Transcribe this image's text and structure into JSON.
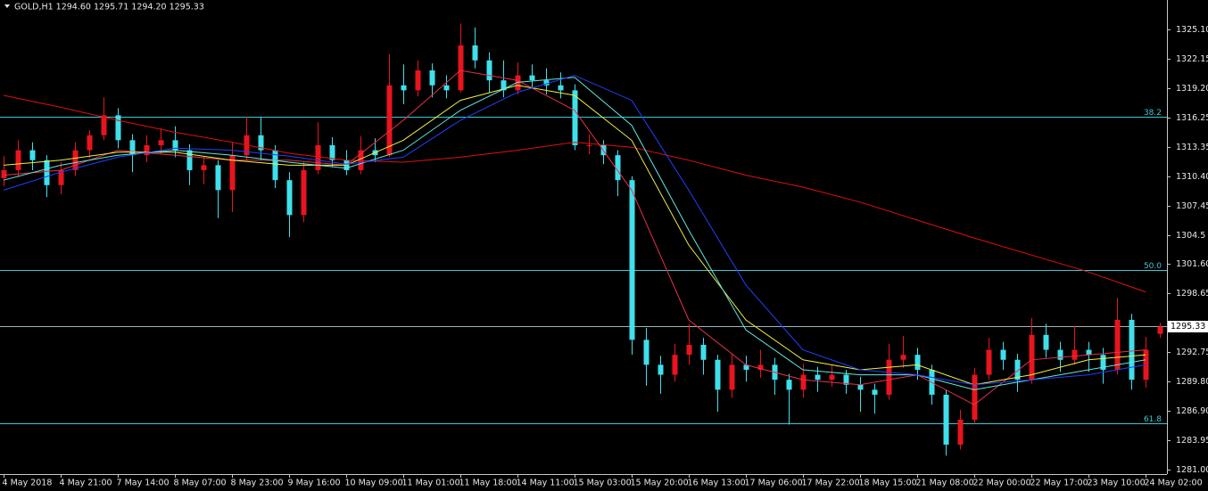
{
  "chart_data": {
    "type": "candlestick",
    "title": "GOLD,H1  1294.60 1295.71 1294.20 1295.33",
    "up_color": "#e8141e",
    "down_color": "#3ee0ec",
    "level_color": "#3fc6d4",
    "ylim": [
      1280.55,
      1328.05
    ],
    "yticks": [
      {
        "value": 1325.1,
        "label": "1325.10"
      },
      1322.15,
      {
        "value": 1319.2,
        "label": "1319.20"
      },
      1316.25,
      1313.35,
      {
        "value": 1310.4,
        "label": "1310.40"
      },
      1307.45,
      1304.5,
      {
        "value": 1301.6,
        "label": "1301.60"
      },
      1298.65,
      1292.75,
      {
        "value": 1289.8,
        "label": "1289.80"
      },
      {
        "value": 1286.9,
        "label": "1286.90"
      },
      1283.95,
      {
        "value": 1281.0,
        "label": "1281.00"
      }
    ],
    "xticks": [
      {
        "value": 0,
        "label": "4 May 2018"
      },
      {
        "value": 4,
        "label": "4 May 21:00"
      },
      {
        "value": 8,
        "label": "7 May 14:00"
      },
      {
        "value": 12,
        "label": "8 May 07:00"
      },
      {
        "value": 16,
        "label": "8 May 23:00"
      },
      {
        "value": 20,
        "label": "9 May 16:00"
      },
      {
        "value": 24,
        "label": "10 May 09:00"
      },
      {
        "value": 28,
        "label": "11 May 01:00"
      },
      {
        "value": 32,
        "label": "11 May 18:00"
      },
      {
        "value": 36,
        "label": "14 May 11:00"
      },
      {
        "value": 40,
        "label": "15 May 03:00"
      },
      {
        "value": 44,
        "label": "15 May 20:00"
      },
      {
        "value": 48,
        "label": "16 May 13:00"
      },
      {
        "value": 52,
        "label": "17 May 06:00"
      },
      {
        "value": 56,
        "label": "17 May 22:00"
      },
      {
        "value": 60,
        "label": "18 May 15:00"
      },
      {
        "value": 64,
        "label": "21 May 08:00"
      },
      {
        "value": 68,
        "label": "22 May 00:00"
      },
      {
        "value": 72,
        "label": "22 May 17:00"
      },
      {
        "value": 76,
        "label": "23 May 10:00"
      },
      {
        "value": 80,
        "label": "24 May 02:00"
      }
    ],
    "current_price": {
      "value": 1295.33,
      "label": "1295.33",
      "color": "#9fb4b8"
    },
    "levels": [
      {
        "label": "38.2",
        "value": 1316.34
      },
      {
        "label": "50.0",
        "value": 1300.97
      },
      {
        "label": "61.8",
        "value": 1285.6
      }
    ],
    "candles": [
      [
        1310.2,
        1312.4,
        1309.4,
        1311
      ],
      [
        1311,
        1314,
        1310.3,
        1313
      ],
      [
        1313,
        1313.8,
        1311,
        1312
      ],
      [
        1312,
        1312.5,
        1308.3,
        1309.5
      ],
      [
        1309.5,
        1311.8,
        1308.6,
        1311
      ],
      [
        1311,
        1313.8,
        1310.4,
        1313
      ],
      [
        1313,
        1315,
        1312.2,
        1314.5
      ],
      [
        1314.5,
        1318.3,
        1314,
        1316.5
      ],
      [
        1316.5,
        1317.2,
        1313.2,
        1314
      ],
      [
        1314,
        1314.6,
        1310.8,
        1312.5
      ],
      [
        1312.5,
        1314.5,
        1311.8,
        1313.5
      ],
      [
        1313.5,
        1315.2,
        1312.6,
        1314
      ],
      [
        1314,
        1315.4,
        1312.3,
        1313
      ],
      [
        1313,
        1313.6,
        1309.5,
        1311
      ],
      [
        1311,
        1312.4,
        1309.6,
        1311.5
      ],
      [
        1311.5,
        1312,
        1306.2,
        1309
      ],
      [
        1309,
        1313.8,
        1306.8,
        1312.5
      ],
      [
        1312.5,
        1316.4,
        1312,
        1314.5
      ],
      [
        1314.5,
        1316.3,
        1312,
        1313
      ],
      [
        1313,
        1313.5,
        1309.2,
        1310
      ],
      [
        1310,
        1310.8,
        1304.3,
        1306.5
      ],
      [
        1306.5,
        1311.8,
        1305.8,
        1311
      ],
      [
        1311,
        1315.8,
        1310.6,
        1313.5
      ],
      [
        1313.5,
        1314.3,
        1311.3,
        1312
      ],
      [
        1312,
        1313,
        1310.5,
        1311
      ],
      [
        1311,
        1314.4,
        1310.6,
        1313
      ],
      [
        1313,
        1314.2,
        1311.8,
        1312.5
      ],
      [
        1312.5,
        1322.6,
        1312.3,
        1319.5
      ],
      [
        1319.5,
        1321.6,
        1317.6,
        1319
      ],
      [
        1319,
        1322,
        1318.4,
        1321
      ],
      [
        1321,
        1321.7,
        1318.3,
        1319.5
      ],
      [
        1319.5,
        1320.5,
        1318.2,
        1319
      ],
      [
        1319,
        1325.7,
        1318.8,
        1323.5
      ],
      [
        1323.5,
        1325.3,
        1321.2,
        1322
      ],
      [
        1322,
        1322.8,
        1318.8,
        1320
      ],
      [
        1320,
        1322,
        1318.3,
        1319
      ],
      [
        1319,
        1321.8,
        1318.6,
        1320.5
      ],
      [
        1320.5,
        1321.6,
        1319.2,
        1320
      ],
      [
        1320,
        1321.2,
        1318.6,
        1319.5
      ],
      [
        1319.5,
        1320.8,
        1318.2,
        1319
      ],
      [
        1319,
        1319.6,
        1313,
        1313.5
      ],
      [
        1313.5,
        1314.6,
        1312.6,
        1313.5
      ],
      [
        1313.5,
        1314,
        1311.6,
        1312.5
      ],
      [
        1312.5,
        1313,
        1308.4,
        1310
      ],
      [
        1310,
        1310.4,
        1292.5,
        1294
      ],
      [
        1294,
        1295.2,
        1289.4,
        1291.5
      ],
      [
        1291.5,
        1292.4,
        1288.6,
        1290.5
      ],
      [
        1290.5,
        1293.6,
        1289.8,
        1292.5
      ],
      [
        1292.5,
        1295.6,
        1291.5,
        1293.5
      ],
      [
        1293.5,
        1294.2,
        1290.5,
        1292
      ],
      [
        1292,
        1292.5,
        1286.8,
        1289
      ],
      [
        1289,
        1292.6,
        1288.2,
        1291.5
      ],
      [
        1291.5,
        1292.4,
        1289.8,
        1291
      ],
      [
        1291,
        1293,
        1290.2,
        1291.5
      ],
      [
        1291.5,
        1292.2,
        1288.5,
        1290
      ],
      [
        1290,
        1290.6,
        1285.5,
        1289
      ],
      [
        1289,
        1291.6,
        1288.2,
        1290.5
      ],
      [
        1290.5,
        1291.3,
        1288.8,
        1290
      ],
      [
        1290,
        1291.5,
        1289.3,
        1290.5
      ],
      [
        1290.5,
        1291,
        1288.6,
        1289.5
      ],
      [
        1289.5,
        1290.3,
        1286.8,
        1289
      ],
      [
        1289,
        1289.6,
        1286.6,
        1288.5
      ],
      [
        1288.5,
        1293.6,
        1288,
        1292
      ],
      [
        1292,
        1294.4,
        1291.2,
        1292.5
      ],
      [
        1292.5,
        1293.2,
        1290,
        1291
      ],
      [
        1291,
        1291.5,
        1287.5,
        1288.5
      ],
      [
        1288.5,
        1289,
        1282.4,
        1283.5
      ],
      [
        1283.5,
        1287,
        1283,
        1286
      ],
      [
        1286,
        1291.2,
        1285.6,
        1290.5
      ],
      [
        1290.5,
        1294.2,
        1290,
        1293
      ],
      [
        1293,
        1293.8,
        1291,
        1292
      ],
      [
        1292,
        1292.6,
        1288.8,
        1290
      ],
      [
        1290,
        1296.2,
        1289.6,
        1294.5
      ],
      [
        1294.5,
        1295.6,
        1292.2,
        1293
      ],
      [
        1293,
        1293.8,
        1290.8,
        1292
      ],
      [
        1292,
        1295.4,
        1291.5,
        1293
      ],
      [
        1293,
        1293.8,
        1290.8,
        1292.5
      ],
      [
        1292.5,
        1293.2,
        1289.6,
        1291
      ],
      [
        1291,
        1298.2,
        1290.5,
        1296
      ],
      [
        1296,
        1296.6,
        1289,
        1290
      ],
      [
        1290,
        1294.3,
        1289.2,
        1293
      ],
      [
        1294.6,
        1295.71,
        1294.2,
        1295.33
      ]
    ],
    "ma_x": [
      0,
      4,
      8,
      12,
      16,
      20,
      24,
      28,
      32,
      36,
      40,
      44,
      48,
      52,
      56,
      60,
      64,
      68,
      72,
      76,
      80
    ],
    "ma": [
      {
        "color": "#e01010",
        "values": [
          1318.5,
          1317.3,
          1316.0,
          1314.8,
          1313.8,
          1312.7,
          1312.0,
          1311.8,
          1312.3,
          1313.0,
          1313.8,
          1313.3,
          1312.0,
          1310.5,
          1309.3,
          1307.8,
          1306.0,
          1304.2,
          1302.5,
          1300.8,
          1298.8
        ]
      },
      {
        "color": "#e8304a",
        "values": [
          1310.5,
          1311,
          1313,
          1312.5,
          1312,
          1312,
          1311.5,
          1316,
          1321,
          1320,
          1317,
          1309,
          1296,
          1291.5,
          1290,
          1289.5,
          1290.5,
          1287.5,
          1292,
          1292.5,
          1293
        ]
      },
      {
        "color": "#f0f040",
        "values": [
          1311.5,
          1312,
          1312.8,
          1312.8,
          1312,
          1311.5,
          1311.5,
          1314,
          1318,
          1319.5,
          1318.5,
          1314,
          1303.5,
          1296,
          1292,
          1291,
          1291.5,
          1289.5,
          1290.5,
          1292,
          1292.5
        ]
      },
      {
        "color": "#60e8e0",
        "values": [
          1310,
          1311.5,
          1312.5,
          1313,
          1312.5,
          1311.8,
          1311.2,
          1313,
          1317,
          1319.8,
          1320.3,
          1315.5,
          1305,
          1295,
          1291,
          1290.5,
          1290.5,
          1289,
          1290,
          1291,
          1292
        ]
      },
      {
        "color": "#2040ff",
        "values": [
          1309,
          1310.8,
          1312.3,
          1313.2,
          1313,
          1312.4,
          1311.6,
          1312.3,
          1316,
          1318.8,
          1320.5,
          1318,
          1309,
          1299.5,
          1293,
          1291,
          1290.5,
          1289.5,
          1290,
          1290.5,
          1291.5
        ]
      }
    ]
  }
}
